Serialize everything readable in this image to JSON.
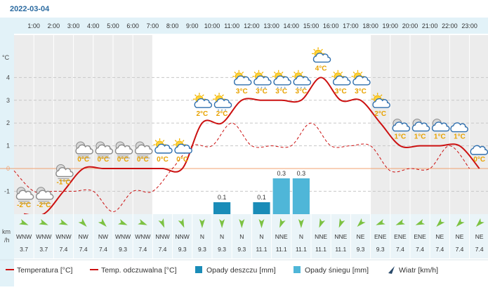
{
  "date": "2022-03-04",
  "colors": {
    "temperature": "#cc1111",
    "feels_like": "#cc1111",
    "rain": "#1a8cb8",
    "snow": "#4fb6d8",
    "temp_label": "#e8a200",
    "axis_text": "#4a4a4a",
    "header_bg": "#e2f2f8",
    "zero_line": "#f0a070"
  },
  "legend": [
    {
      "id": "temperature",
      "label": "Temperatura [°C]",
      "icon": "solid-line-icon"
    },
    {
      "id": "feels_like",
      "label": "Temp. odczuwalna [°C]",
      "icon": "solid-line-icon"
    },
    {
      "id": "rain",
      "label": "Opady deszczu [mm]",
      "icon": "rain-square-icon"
    },
    {
      "id": "snow",
      "label": "Opady śniegu [mm]",
      "icon": "snow-square-icon"
    },
    {
      "id": "wind",
      "label": "Wiatr [km/h]",
      "icon": "wind-arrow-icon"
    }
  ],
  "chart_data": {
    "type": "line",
    "title": "",
    "y_axis_label": "°C",
    "wind_axis_label": [
      "km",
      "/h"
    ],
    "ylim": [
      -3.2,
      5.8
    ],
    "y_ticks": [
      -1,
      0,
      1,
      2,
      3,
      4
    ],
    "x": [
      "1:00",
      "2:00",
      "3:00",
      "4:00",
      "5:00",
      "6:00",
      "7:00",
      "8:00",
      "9:00",
      "10:00",
      "11:00",
      "12:00",
      "13:00",
      "14:00",
      "15:00",
      "16:00",
      "17:00",
      "18:00",
      "19:00",
      "20:00",
      "21:00",
      "22:00",
      "23:00"
    ],
    "temperature": [
      -2,
      -2,
      -1,
      0,
      0,
      0,
      0,
      0,
      0,
      2,
      2,
      3,
      3,
      3,
      3,
      4,
      3,
      3,
      2,
      1,
      1,
      1,
      1,
      0
    ],
    "feels_like": [
      -0.1,
      -1,
      -1,
      -1,
      -1,
      -1.9,
      -1,
      -1,
      0,
      1,
      1,
      2,
      1,
      1,
      1,
      2,
      1,
      1,
      1,
      -0.1,
      0,
      0,
      1,
      0
    ],
    "temp_labels": [
      "-2°C",
      "-2°C",
      "-1°C",
      "0°C",
      "0°C",
      "0°C",
      "0°C",
      "0°C",
      "0°C",
      "2°C",
      "2°C",
      "3°C",
      "3°C",
      "3°C",
      "3°C",
      "4°C",
      "3°C",
      "3°C",
      "2°C",
      "1°C",
      "1°C",
      "1°C",
      "1°C",
      "0°C"
    ],
    "weather_icons": [
      "night-partly-cloudy-fog-icon",
      "night-partly-cloudy-fog-icon",
      "night-partly-cloudy-fog-icon",
      "night-partly-cloudy-fog-icon",
      "night-partly-cloudy-fog-icon",
      "night-partly-cloudy-fog-icon",
      "night-partly-cloudy-fog-icon",
      "sun-cloud-icon",
      "sun-cloud-icon",
      "sun-cloud-icon",
      "sun-cloud-snow-icon",
      "sun-cloud-icon",
      "sun-cloud-snow-icon",
      "sun-cloud-snow-icon",
      "sun-cloud-snow-icon",
      "sun-cloud-icon",
      "sun-cloud-icon",
      "sun-cloud-icon",
      "sun-cloud-icon",
      "moon-cloud-icon",
      "moon-cloud-icon",
      "moon-cloud-icon",
      "cloud-icon",
      "cloud-icon"
    ],
    "rain": [
      0,
      0,
      0,
      0,
      0,
      0,
      0,
      0,
      0,
      0,
      0.1,
      0,
      0.1,
      0,
      0,
      0,
      0,
      0,
      0,
      0,
      0,
      0,
      0,
      0
    ],
    "snow": [
      0,
      0,
      0,
      0,
      0,
      0,
      0,
      0,
      0,
      0,
      0,
      0,
      0,
      0.3,
      0.3,
      0,
      0,
      0,
      0,
      0,
      0,
      0,
      0,
      0
    ],
    "precip_labels": [
      "",
      "",
      "",
      "",
      "",
      "",
      "",
      "",
      "",
      "",
      "0.1",
      "",
      "0.1",
      "0.3",
      "0.3",
      "",
      "",
      "",
      "",
      "",
      "",
      "",
      "",
      ""
    ],
    "wind_dir": [
      "WNW",
      "WNW",
      "WNW",
      "NW",
      "NW",
      "WNW",
      "WNW",
      "NNW",
      "NNW",
      "N",
      "N",
      "N",
      "N",
      "NNE",
      "N",
      "NNE",
      "NNE",
      "NE",
      "ENE",
      "ENE",
      "ENE",
      "NE",
      "NE",
      "NE"
    ],
    "wind_speed": [
      "3.7",
      "3.7",
      "7.4",
      "7.4",
      "7.4",
      "9.3",
      "7.4",
      "7.4",
      "9.3",
      "9.3",
      "9.3",
      "9.3",
      "11.1",
      "11.1",
      "11.1",
      "11.1",
      "11.1",
      "9.3",
      "9.3",
      "7.4",
      "7.4",
      "7.4",
      "7.4",
      "7.4"
    ],
    "shading": "night-hours",
    "grid": true
  }
}
